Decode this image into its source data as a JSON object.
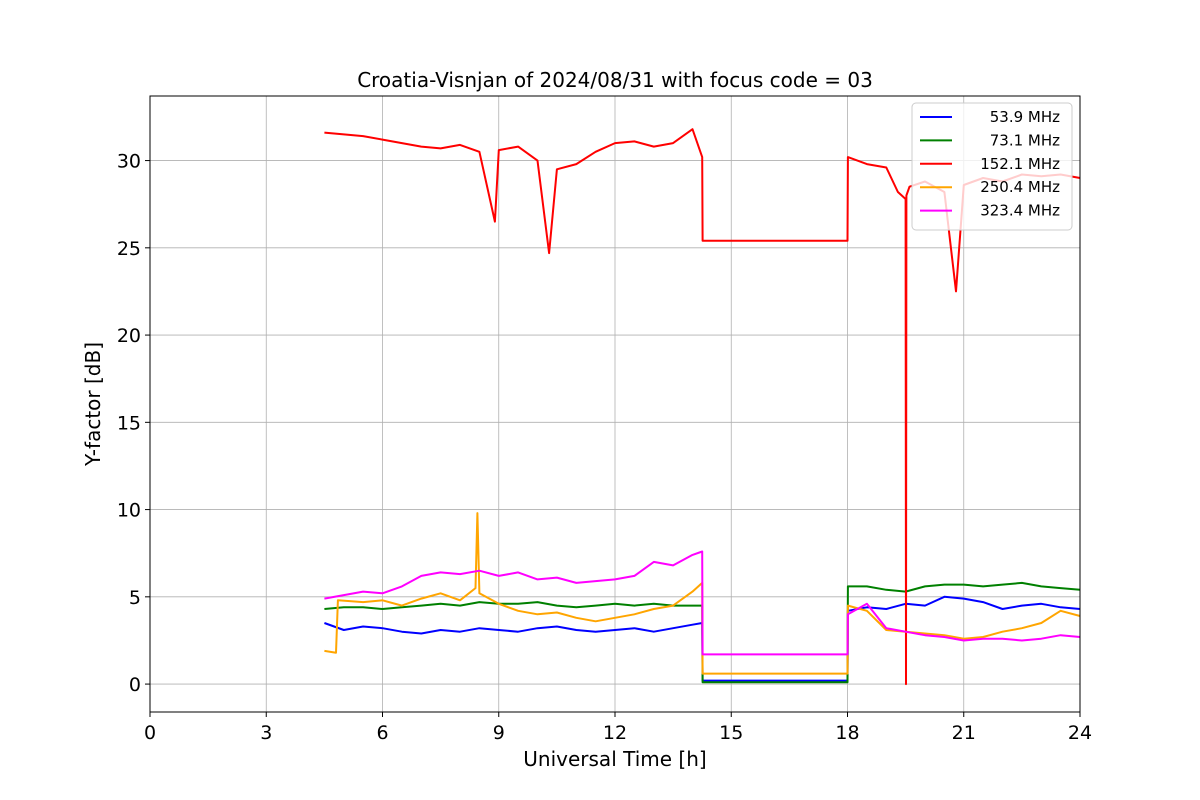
{
  "chart_data": {
    "type": "line",
    "title": "Croatia-Visnjan of 2024/08/31 with focus code = 03",
    "xlabel": "Universal Time [h]",
    "ylabel": "Y-factor [dB]",
    "xlim": [
      0,
      24
    ],
    "ylim": [
      -1.6,
      33.7
    ],
    "xticks": [
      0,
      3,
      6,
      9,
      12,
      15,
      18,
      21,
      24
    ],
    "yticks": [
      0,
      5,
      10,
      15,
      20,
      25,
      30
    ],
    "grid": true,
    "legend_position": "top-right",
    "series": [
      {
        "name": "53.9 MHz",
        "color": "#0000ff",
        "x": [
          4.5,
          5.0,
          5.5,
          6.0,
          6.5,
          7.0,
          7.5,
          8.0,
          8.5,
          9.0,
          9.5,
          10.0,
          10.5,
          11.0,
          11.5,
          12.0,
          12.5,
          13.0,
          13.5,
          14.0,
          14.25,
          14.26,
          18.0,
          18.01,
          18.5,
          19.0,
          19.5,
          20.0,
          20.5,
          21.0,
          21.5,
          22.0,
          22.5,
          23.0,
          23.5,
          24.0
        ],
        "values": [
          3.5,
          3.1,
          3.3,
          3.2,
          3.0,
          2.9,
          3.1,
          3.0,
          3.2,
          3.1,
          3.0,
          3.2,
          3.3,
          3.1,
          3.0,
          3.1,
          3.2,
          3.0,
          3.2,
          3.4,
          3.5,
          0.2,
          0.2,
          4.2,
          4.4,
          4.3,
          4.6,
          4.5,
          5.0,
          4.9,
          4.7,
          4.3,
          4.5,
          4.6,
          4.4,
          4.3
        ]
      },
      {
        "name": "73.1 MHz",
        "color": "#008000",
        "x": [
          4.5,
          5.0,
          5.5,
          6.0,
          6.5,
          7.0,
          7.5,
          8.0,
          8.5,
          9.0,
          9.5,
          10.0,
          10.5,
          11.0,
          11.5,
          12.0,
          12.5,
          13.0,
          13.5,
          14.0,
          14.25,
          14.26,
          18.0,
          18.01,
          18.5,
          19.0,
          19.5,
          20.0,
          20.5,
          21.0,
          21.5,
          22.0,
          22.5,
          23.0,
          23.5,
          24.0
        ],
        "values": [
          4.3,
          4.4,
          4.4,
          4.3,
          4.4,
          4.5,
          4.6,
          4.5,
          4.7,
          4.6,
          4.6,
          4.7,
          4.5,
          4.4,
          4.5,
          4.6,
          4.5,
          4.6,
          4.5,
          4.5,
          4.5,
          0.1,
          0.1,
          5.6,
          5.6,
          5.4,
          5.3,
          5.6,
          5.7,
          5.7,
          5.6,
          5.7,
          5.8,
          5.6,
          5.5,
          5.4
        ]
      },
      {
        "name": "152.1 MHz",
        "color": "#ff0000",
        "x": [
          4.5,
          5.0,
          5.5,
          6.0,
          6.5,
          7.0,
          7.5,
          8.0,
          8.5,
          8.9,
          9.0,
          9.5,
          10.0,
          10.3,
          10.5,
          11.0,
          11.5,
          12.0,
          12.5,
          13.0,
          13.5,
          14.0,
          14.25,
          14.26,
          18.0,
          18.01,
          18.5,
          19.0,
          19.3,
          19.5,
          19.51,
          19.52,
          19.6,
          20.0,
          20.5,
          20.8,
          21.0,
          21.5,
          22.0,
          22.5,
          23.0,
          23.5,
          24.0
        ],
        "values": [
          31.6,
          31.5,
          31.4,
          31.2,
          31.0,
          30.8,
          30.7,
          30.9,
          30.5,
          26.5,
          30.6,
          30.8,
          30.0,
          24.7,
          29.5,
          29.8,
          30.5,
          31.0,
          31.1,
          30.8,
          31.0,
          31.8,
          30.2,
          25.4,
          25.4,
          30.2,
          29.8,
          29.6,
          28.2,
          27.8,
          0.0,
          28.0,
          28.5,
          28.8,
          28.2,
          22.5,
          28.6,
          29.0,
          28.8,
          29.2,
          29.1,
          29.2,
          29.0
        ]
      },
      {
        "name": "250.4 MHz",
        "color": "#ffa500",
        "x": [
          4.5,
          4.8,
          4.85,
          5.5,
          6.0,
          6.5,
          7.0,
          7.5,
          8.0,
          8.4,
          8.45,
          8.5,
          9.0,
          9.5,
          10.0,
          10.5,
          11.0,
          11.5,
          12.0,
          12.5,
          13.0,
          13.5,
          14.0,
          14.25,
          14.26,
          18.0,
          18.01,
          18.5,
          19.0,
          19.5,
          20.0,
          20.5,
          21.0,
          21.5,
          22.0,
          22.5,
          23.0,
          23.5,
          24.0
        ],
        "values": [
          1.9,
          1.8,
          4.8,
          4.7,
          4.8,
          4.5,
          4.9,
          5.2,
          4.8,
          5.5,
          9.8,
          5.2,
          4.6,
          4.2,
          4.0,
          4.1,
          3.8,
          3.6,
          3.8,
          4.0,
          4.3,
          4.5,
          5.3,
          5.8,
          0.6,
          0.6,
          4.5,
          4.2,
          3.1,
          3.0,
          2.9,
          2.8,
          2.6,
          2.7,
          3.0,
          3.2,
          3.5,
          4.2,
          3.9
        ]
      },
      {
        "name": "323.4 MHz",
        "color": "#ff00ff",
        "x": [
          4.5,
          5.0,
          5.5,
          6.0,
          6.5,
          7.0,
          7.5,
          8.0,
          8.5,
          9.0,
          9.5,
          10.0,
          10.5,
          11.0,
          11.5,
          12.0,
          12.5,
          13.0,
          13.5,
          14.0,
          14.25,
          14.26,
          18.0,
          18.01,
          18.5,
          19.0,
          19.5,
          20.0,
          20.5,
          21.0,
          21.5,
          22.0,
          22.5,
          23.0,
          23.5,
          24.0
        ],
        "values": [
          4.9,
          5.1,
          5.3,
          5.2,
          5.6,
          6.2,
          6.4,
          6.3,
          6.5,
          6.2,
          6.4,
          6.0,
          6.1,
          5.8,
          5.9,
          6.0,
          6.2,
          7.0,
          6.8,
          7.4,
          7.6,
          1.7,
          1.7,
          4.0,
          4.6,
          3.2,
          3.0,
          2.8,
          2.7,
          2.5,
          2.6,
          2.6,
          2.5,
          2.6,
          2.8,
          2.7
        ]
      }
    ]
  }
}
